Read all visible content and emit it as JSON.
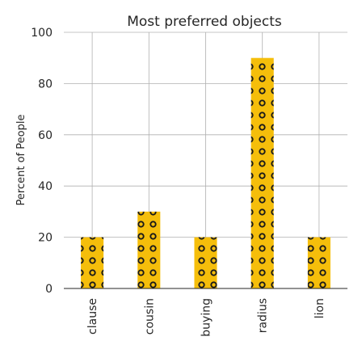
{
  "chart_data": {
    "type": "bar",
    "title": "Most preferred objects",
    "xlabel": "",
    "ylabel": "Percent of People",
    "categories": [
      "clause",
      "cousin",
      "buying",
      "radius",
      "lion"
    ],
    "values": [
      20,
      30,
      20,
      90,
      20
    ],
    "ylim": [
      0,
      100
    ],
    "yticks": [
      0,
      20,
      40,
      60,
      80,
      100
    ],
    "grid": true,
    "bar_color": "#f5be0b",
    "bar_pattern": "circles",
    "pattern_color": "#1a1a1a"
  }
}
